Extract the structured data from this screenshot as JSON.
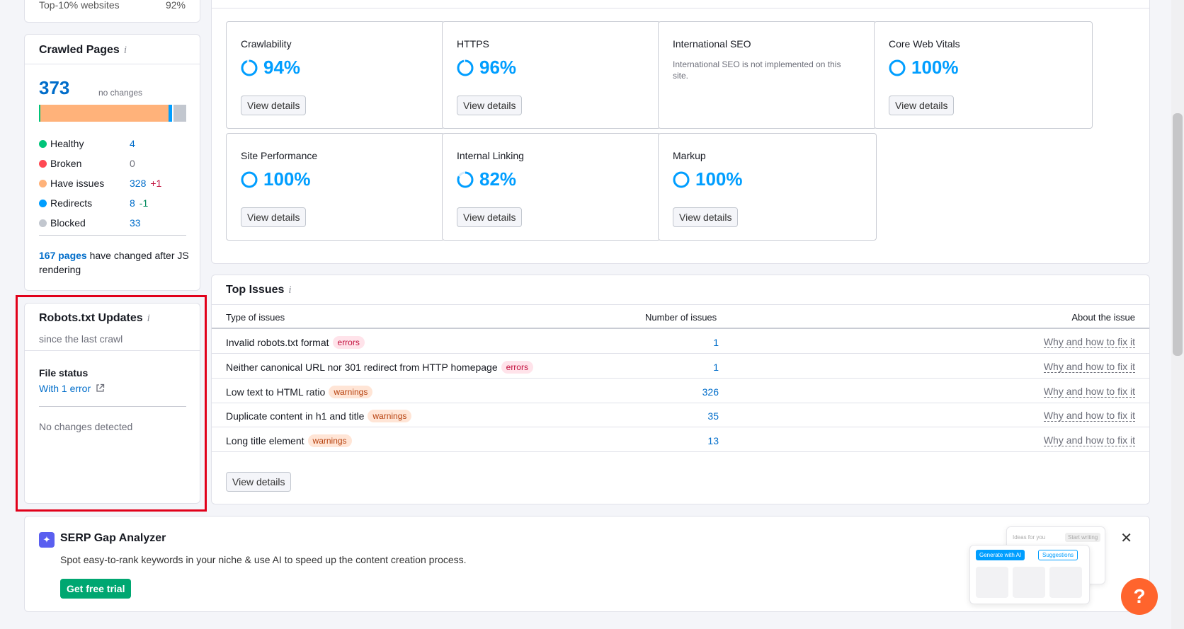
{
  "top_partial": {
    "label": "Top-10% websites",
    "value": "92%"
  },
  "crawled": {
    "title": "Crawled Pages",
    "info": "i",
    "total": "373",
    "total_note": "no changes",
    "bar": [
      {
        "name": "Healthy",
        "share": 0.011,
        "color": "#00c47a"
      },
      {
        "name": "Have issues",
        "share": 0.879,
        "color": "#ffb27a"
      },
      {
        "name": "Redirects",
        "share": 0.021,
        "color": "#009eff"
      },
      {
        "name": "gap",
        "share": 0.01,
        "color": "#ffffff"
      },
      {
        "name": "Blocked",
        "share": 0.088,
        "color": "#c2c7cf"
      }
    ],
    "legend": [
      {
        "label": "Healthy",
        "count": "4",
        "delta": "",
        "color": "#00c47a"
      },
      {
        "label": "Broken",
        "count": "0",
        "delta": "",
        "color": "#ff4953"
      },
      {
        "label": "Have issues",
        "count": "328",
        "delta": "+1",
        "color": "#ffb27a",
        "delta_color": "#c2103d"
      },
      {
        "label": "Redirects",
        "count": "8",
        "delta": "-1",
        "color": "#009eff",
        "delta_color": "#008a5c"
      },
      {
        "label": "Blocked",
        "count": "33",
        "delta": "",
        "color": "#c2c7cf"
      }
    ],
    "changed_link": "167 pages",
    "changed_text": " have changed after JS rendering"
  },
  "robots": {
    "title": "Robots.txt Updates",
    "since": "since the last crawl",
    "file_status_label": "File status",
    "file_status_value": "With 1 error",
    "no_changes": "No changes detected"
  },
  "thematic": {
    "tiles": [
      {
        "name": "Crawlability",
        "score": "94%",
        "pct": 94,
        "button": "View details"
      },
      {
        "name": "HTTPS",
        "score": "96%",
        "pct": 96,
        "button": "View details"
      },
      {
        "name": "International SEO",
        "desc": "International SEO is not implemented on this site."
      },
      {
        "name": "Core Web Vitals",
        "score": "100%",
        "pct": 100,
        "button": "View details"
      },
      {
        "name": "Site Performance",
        "score": "100%",
        "pct": 100,
        "button": "View details"
      },
      {
        "name": "Internal Linking",
        "score": "82%",
        "pct": 82,
        "button": "View details"
      },
      {
        "name": "Markup",
        "score": "100%",
        "pct": 100,
        "button": "View details"
      }
    ]
  },
  "issues": {
    "title": "Top Issues",
    "col_type": "Type of issues",
    "col_number": "Number of issues",
    "col_about": "About the issue",
    "rows": [
      {
        "name": "Invalid robots.txt format",
        "tag": "errors",
        "count": "1",
        "fix": "Why and how to fix it"
      },
      {
        "name": "Neither canonical URL nor 301 redirect from HTTP homepage",
        "tag": "errors",
        "count": "1",
        "fix": "Why and how to fix it"
      },
      {
        "name": "Low text to HTML ratio",
        "tag": "warnings",
        "count": "326",
        "fix": "Why and how to fix it"
      },
      {
        "name": "Duplicate content in h1 and title",
        "tag": "warnings",
        "count": "35",
        "fix": "Why and how to fix it"
      },
      {
        "name": "Long title element",
        "tag": "warnings",
        "count": "13",
        "fix": "Why and how to fix it"
      }
    ],
    "button": "View details"
  },
  "serp": {
    "title": "SERP Gap Analyzer",
    "desc": "Spot easy-to-rank keywords in your niche & use AI to speed up the content creation process.",
    "cta": "Get free trial",
    "close": "✕",
    "mock_ideas": "Ideas for you",
    "mock_start": "Start writing",
    "mock_generate": "Generate with AI",
    "mock_suggestions": "Suggestions"
  },
  "help": "?"
}
